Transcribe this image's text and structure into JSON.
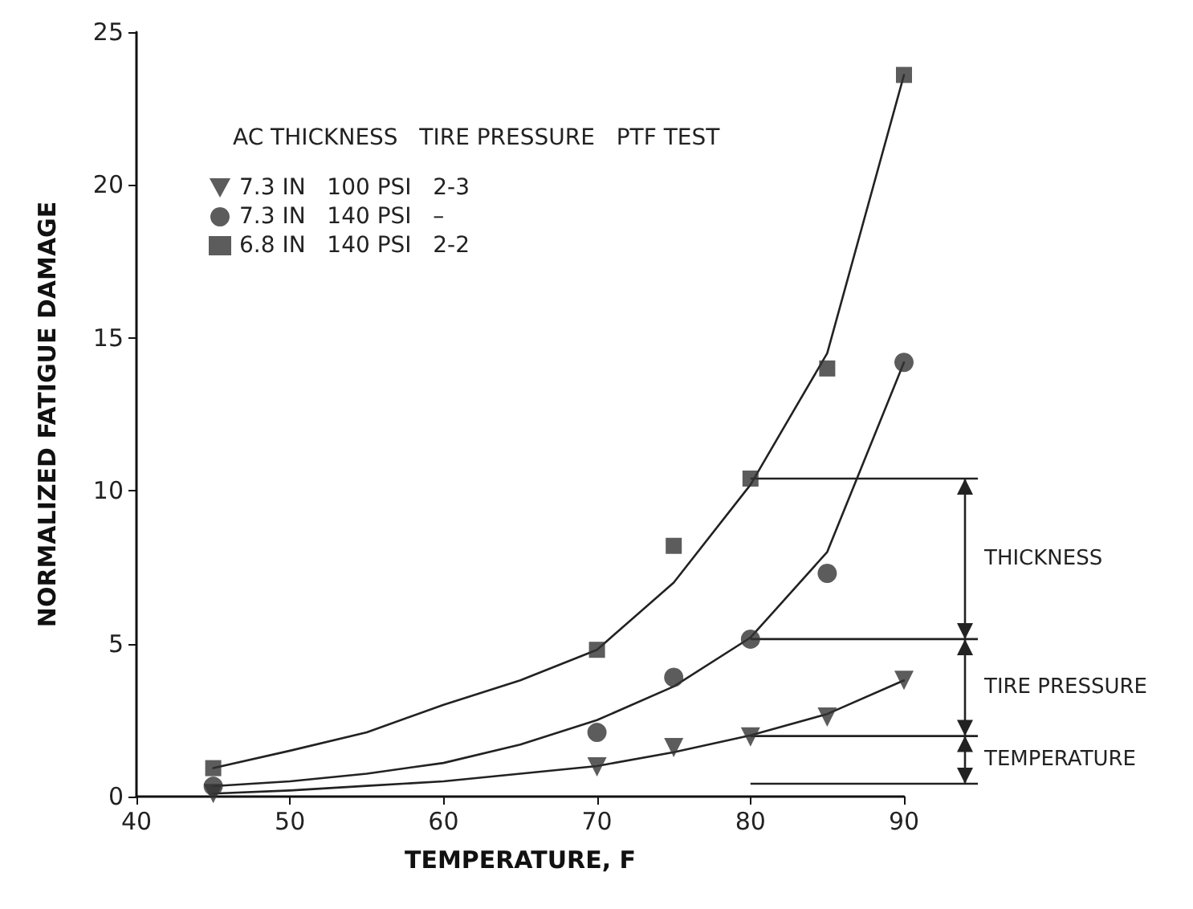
{
  "chart_data": {
    "type": "scatter",
    "xlabel": "TEMPERATURE, F",
    "ylabel": "NORMALIZED FATIGUE DAMAGE",
    "legend_title": "AC THICKNESS   TIRE PRESSURE   PTF TEST",
    "xlim": [
      40,
      90
    ],
    "xticks": [
      40,
      50,
      60,
      70,
      80,
      90
    ],
    "ylim": [
      0,
      25
    ],
    "yticks": [
      0,
      5,
      10,
      15,
      20,
      25
    ],
    "grid": false,
    "legend": "top left",
    "series": [
      {
        "name": "7.3 IN   100 PSI   2-3",
        "marker": "triangle",
        "color": "#333333",
        "x": [
          45,
          70,
          75,
          80,
          85,
          90
        ],
        "values": [
          0.1,
          0.97,
          1.6,
          1.95,
          2.6,
          3.8
        ]
      },
      {
        "name": "7.3 IN   140 PSI   –",
        "marker": "circle",
        "color": "#333333",
        "x": [
          45,
          70,
          75,
          80,
          85,
          90
        ],
        "values": [
          0.34,
          2.1,
          3.9,
          5.15,
          7.3,
          14.2
        ]
      },
      {
        "name": "6.8 IN   140 PSI   2-2",
        "marker": "square",
        "color": "#333333",
        "x": [
          45,
          70,
          75,
          80,
          85,
          90
        ],
        "values": [
          0.93,
          4.8,
          8.2,
          10.4,
          14.0,
          23.6
        ]
      },
      {
        "type": "line",
        "marker": "none",
        "color": "#222222",
        "x": [
          45,
          50,
          55,
          60,
          65,
          70,
          75,
          80,
          85,
          90
        ],
        "values": [
          0.1,
          0.2,
          0.35,
          0.5,
          0.75,
          1.0,
          1.45,
          2.0,
          2.7,
          3.8
        ]
      },
      {
        "type": "line",
        "marker": "none",
        "color": "#222222",
        "x": [
          45,
          50,
          55,
          60,
          65,
          70,
          75,
          80,
          85,
          90
        ],
        "values": [
          0.34,
          0.5,
          0.75,
          1.1,
          1.7,
          2.5,
          3.6,
          5.2,
          8.0,
          14.2
        ]
      },
      {
        "type": "line",
        "marker": "none",
        "color": "#222222",
        "x": [
          45,
          50,
          55,
          60,
          65,
          70,
          75,
          80,
          85,
          90
        ],
        "values": [
          0.93,
          1.5,
          2.1,
          3.0,
          3.8,
          4.8,
          7.0,
          10.2,
          14.5,
          23.6
        ]
      }
    ],
    "ref_lines": [
      {
        "axis": "y",
        "value": 10.4,
        "label": null
      },
      {
        "axis": "y",
        "value": 5.15,
        "label": null
      },
      {
        "axis": "y",
        "value": 1.98,
        "label": null
      },
      {
        "axis": "y",
        "value": 0.42,
        "label": null
      }
    ],
    "annotations": [
      "THICKNESS",
      "TIRE PRESSURE",
      "TEMPERATURE"
    ]
  }
}
